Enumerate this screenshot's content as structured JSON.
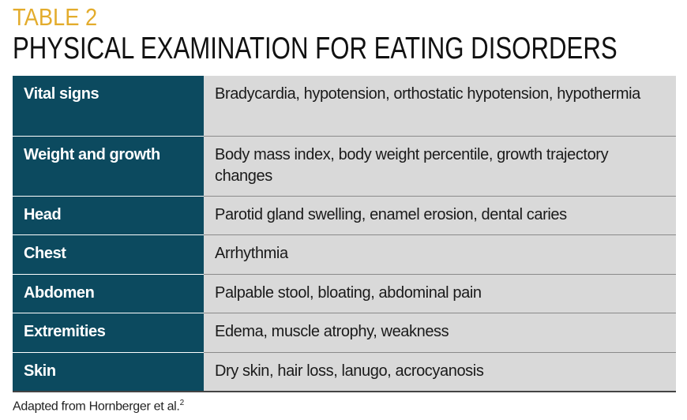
{
  "header": {
    "label": "TABLE 2",
    "title": "PHYSICAL EXAMINATION FOR EATING DISORDERS"
  },
  "table": {
    "rows": [
      [
        "Vital signs",
        "Bradycardia, hypotension, orthostatic hypotension, hypothermia"
      ],
      [
        "Weight and growth",
        "Body mass index, body weight percentile, growth trajectory changes"
      ],
      [
        "Head",
        "Parotid gland swelling, enamel erosion, dental caries"
      ],
      [
        "Chest",
        "Arrhythmia"
      ],
      [
        "Abdomen",
        "Palpable stool, bloating, abdominal pain"
      ],
      [
        "Extremities",
        "Edema, muscle atrophy, weakness"
      ],
      [
        "Skin",
        "Dry skin, hair loss, lanugo, acrocyanosis"
      ]
    ]
  },
  "footnote": {
    "text": "Adapted from Hornberger et al.",
    "sup": "2"
  }
}
